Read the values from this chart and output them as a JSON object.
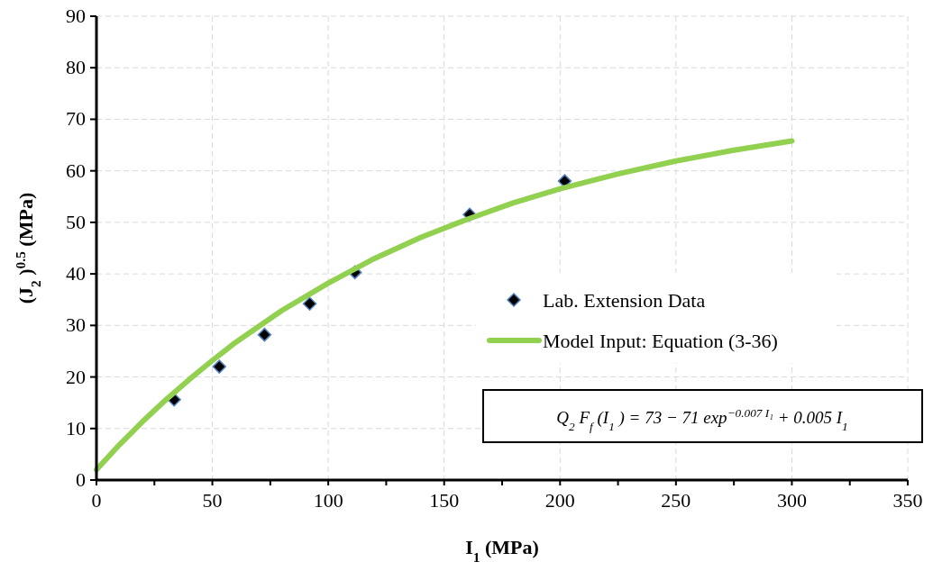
{
  "chart_data": {
    "type": "scatter",
    "xlabel": "I$_{1}$   (MPa)",
    "ylabel": "(J$_{2}$)$^{0.5}$   (MPa)",
    "xlim": [
      0,
      350
    ],
    "xticks": [
      0,
      50,
      100,
      150,
      200,
      250,
      300,
      350
    ],
    "ylim": [
      0,
      90
    ],
    "yticks": [
      0,
      10,
      20,
      30,
      40,
      50,
      60,
      70,
      80,
      90
    ],
    "grid": true,
    "legend": "right",
    "annotations": [
      "Q$_{2}$ F$_{f}$(I$_{1}$) = 73 − 71 exp$^{−0.007 I₁}$ + 0.005 I$_{1}$"
    ],
    "series": [
      {
        "name": "Lab. Extension Data",
        "marker": "diamond",
        "color": "#000000",
        "x": [
          33.5,
          53,
          72.5,
          92,
          111.5,
          161,
          202
        ],
        "values": [
          15.6,
          22,
          28.2,
          34.2,
          40.3,
          51.5,
          58
        ]
      },
      {
        "name": "Model Input: Equation (3-36)",
        "type": "line",
        "color": "#92d050",
        "x": [
          0,
          10,
          20,
          30,
          40,
          50,
          60,
          80,
          100,
          120,
          140,
          160,
          180,
          200,
          225,
          250,
          275,
          300
        ],
        "values": [
          2,
          6.9,
          11.4,
          15.6,
          19.5,
          23.2,
          26.7,
          32.9,
          38.2,
          43,
          47.1,
          50.6,
          53.8,
          56.5,
          59.4,
          61.9,
          64,
          65.8
        ]
      }
    ]
  }
}
